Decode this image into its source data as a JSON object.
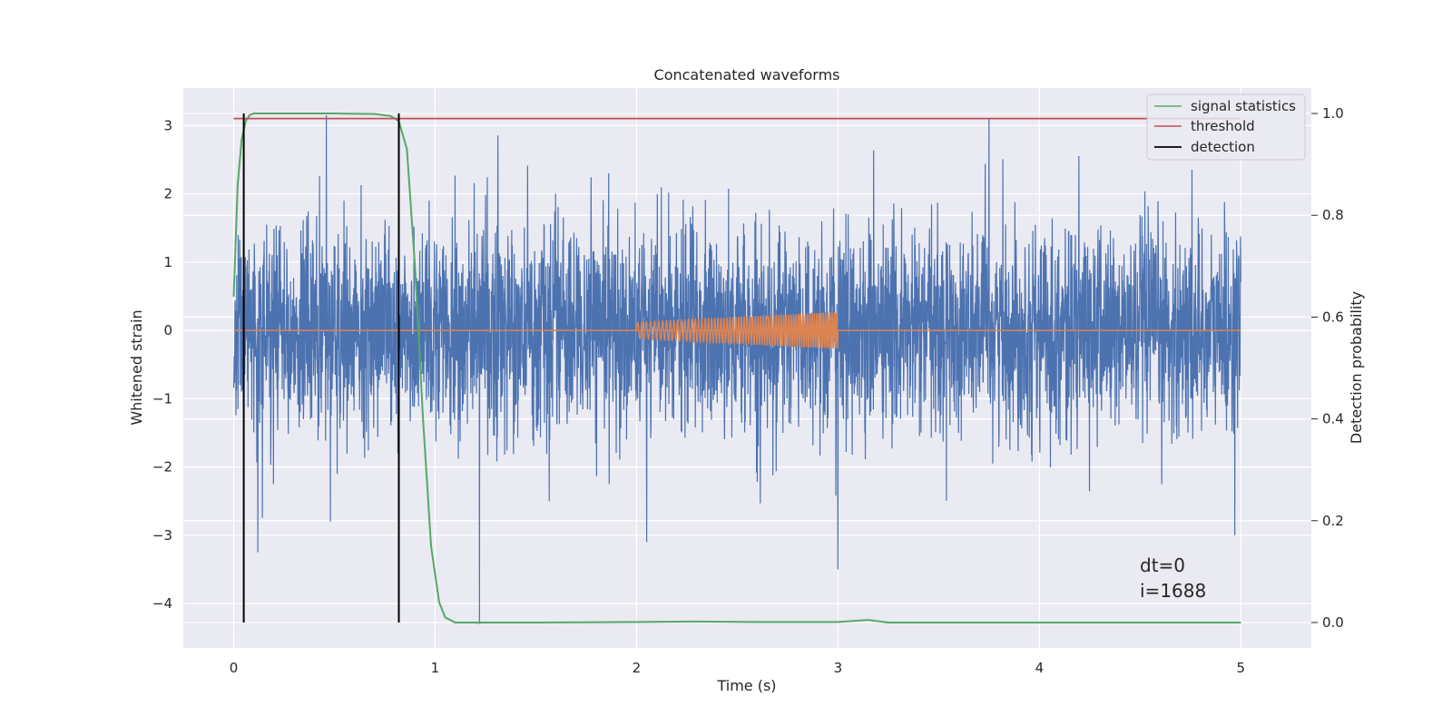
{
  "chart_data": {
    "type": "line",
    "title": "Concatenated waveforms",
    "xlabel": "Time (s)",
    "ylabel": "Whitened strain",
    "ylabel_right": "Detection probability",
    "xlim": [
      -0.25,
      5.35
    ],
    "ylim": [
      -4.65,
      3.55
    ],
    "ylim_right": [
      -0.05,
      1.05
    ],
    "xticks": [
      0,
      1,
      2,
      3,
      4,
      5
    ],
    "xtick_labels": [
      "0",
      "1",
      "2",
      "3",
      "4",
      "5"
    ],
    "yticks": [
      -4,
      -3,
      -2,
      -1,
      0,
      1,
      2,
      3
    ],
    "ytick_labels": [
      "−4",
      "−3",
      "−2",
      "−1",
      "0",
      "1",
      "2",
      "3"
    ],
    "yticks_right": [
      0.0,
      0.2,
      0.4,
      0.6,
      0.8,
      1.0
    ],
    "ytick_labels_right": [
      "0.0",
      "0.2",
      "0.4",
      "0.6",
      "0.8",
      "1.0"
    ],
    "grid": true,
    "legend_position": "top-right",
    "colors": {
      "background": "#eaeaf2",
      "grid": "#ffffff",
      "noise": "#4c72b0",
      "chirp": "#dd8452",
      "signal_statistics": "#55a868",
      "threshold": "#c44e52",
      "detection": "#000000"
    },
    "series": [
      {
        "name": "",
        "axis": "left",
        "description_kind": "noise",
        "x_range": [
          0,
          5
        ],
        "std": 0.75,
        "min": -4.3,
        "max": 3.15,
        "spikes": [
          {
            "x": 0.12,
            "y": -3.25
          },
          {
            "x": 0.46,
            "y": 3.15
          },
          {
            "x": 0.48,
            "y": -2.8
          },
          {
            "x": 1.22,
            "y": -4.3
          },
          {
            "x": 2.05,
            "y": -3.1
          },
          {
            "x": 3.0,
            "y": -3.5
          },
          {
            "x": 3.75,
            "y": 3.1
          },
          {
            "x": 4.97,
            "y": -3.0
          }
        ]
      },
      {
        "name": "",
        "axis": "left",
        "description_kind": "chirp",
        "x_range": [
          2.0,
          3.0
        ],
        "amplitude_start": 0.12,
        "amplitude_end": 0.27,
        "baseline": 0
      },
      {
        "name": "signal statistics",
        "axis": "right",
        "x": [
          0.0,
          0.02,
          0.04,
          0.06,
          0.08,
          0.1,
          0.15,
          0.3,
          0.5,
          0.7,
          0.78,
          0.82,
          0.86,
          0.9,
          0.94,
          0.98,
          1.02,
          1.05,
          1.1,
          1.5,
          2.0,
          2.3,
          2.6,
          3.0,
          3.15,
          3.25,
          4.0,
          4.5,
          5.0
        ],
        "values": [
          0.64,
          0.86,
          0.95,
          0.985,
          0.997,
          1.0,
          1.0,
          1.0,
          1.0,
          0.999,
          0.995,
          0.985,
          0.93,
          0.7,
          0.4,
          0.15,
          0.04,
          0.01,
          0.0,
          0.0,
          0.001,
          0.002,
          0.001,
          0.001,
          0.005,
          0.0,
          0.0,
          0.0,
          0.0
        ]
      },
      {
        "name": "threshold",
        "axis": "right",
        "x": [
          0.0,
          5.0
        ],
        "values": [
          0.99,
          0.99
        ]
      },
      {
        "name": "detection",
        "axis": "right",
        "kind": "vertical_lines",
        "x": [
          0.05,
          0.82
        ],
        "y_range": [
          0.0,
          1.0
        ]
      }
    ],
    "annotations": [
      "dt=0",
      "i=1688"
    ]
  }
}
